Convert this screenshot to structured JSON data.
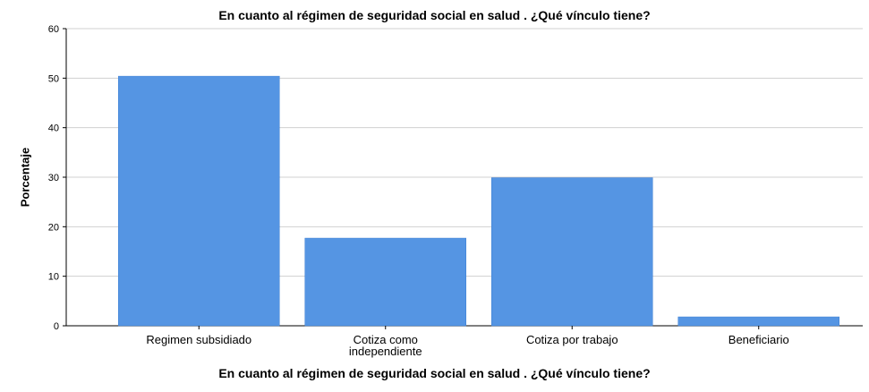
{
  "chart_data": {
    "type": "bar",
    "title": "En cuanto al régimen de seguridad social en salud . ¿Qué vínculo tiene?",
    "xlabel": "En cuanto al régimen de seguridad social en salud . ¿Qué vínculo tiene?",
    "ylabel": "Porcentaje",
    "categories": [
      "Regimen subsidiado",
      "Cotiza como independiente",
      "Cotiza por trabajo",
      "Beneficiario"
    ],
    "values": [
      50.4,
      17.7,
      29.9,
      1.8
    ],
    "ylim": [
      0,
      60
    ],
    "yticks": [
      "0",
      "10",
      "20",
      "30",
      "40",
      "50",
      "60"
    ],
    "grid": true,
    "bar_color": "#5595e3"
  }
}
